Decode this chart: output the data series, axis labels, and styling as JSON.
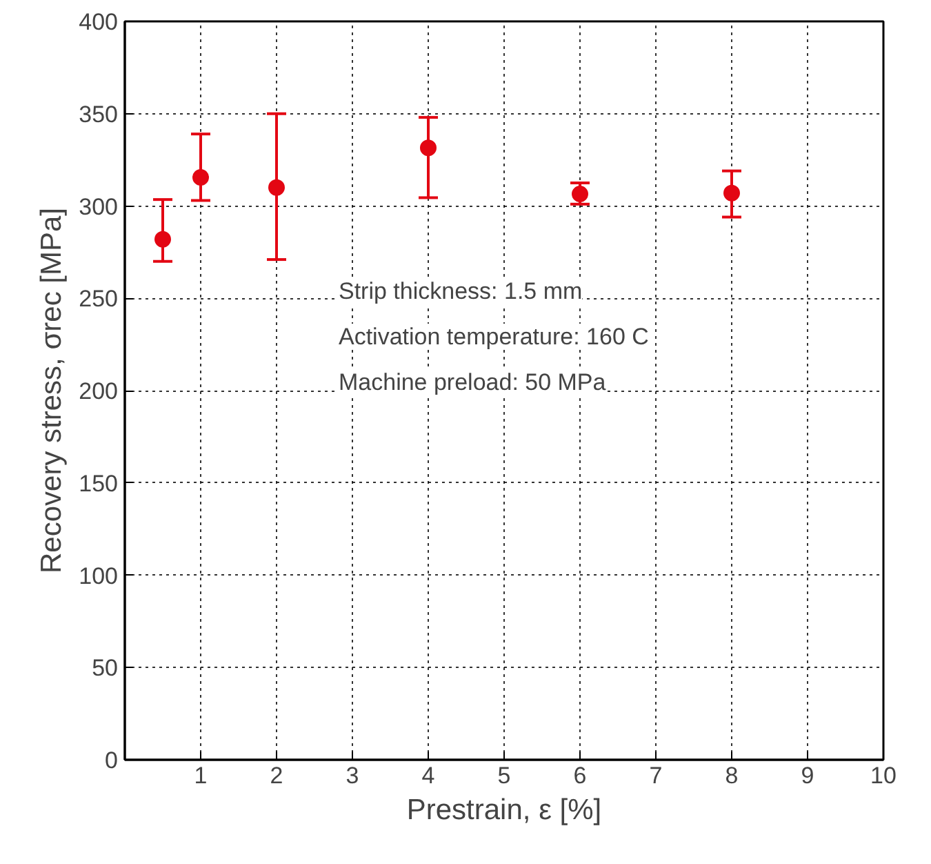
{
  "chart_data": {
    "type": "scatter",
    "xlabel": "Prestrain, ε [%]",
    "ylabel": "Recovery stress, σrec [MPa]",
    "x": [
      0.5,
      1,
      2,
      4,
      6,
      8
    ],
    "series": [
      {
        "color": "#e30613",
        "values": [
          282,
          315.5,
          310,
          331.5,
          306.5,
          307
        ],
        "errors": [
          [
            270,
            303.5
          ],
          [
            303,
            339
          ],
          [
            271,
            350
          ],
          [
            304.5,
            348
          ],
          [
            301,
            312.5
          ],
          [
            294,
            319
          ]
        ]
      }
    ],
    "xlim": [
      0,
      10
    ],
    "xticks": [
      1,
      2,
      3,
      4,
      5,
      6,
      7,
      8,
      9,
      10
    ],
    "ylim": [
      0,
      400
    ],
    "yticks": [
      0,
      50,
      100,
      150,
      200,
      250,
      300,
      350,
      400
    ],
    "grid": true,
    "marker": "circle",
    "annotations": [
      "Strip thickness: 1.5 mm",
      "Activation temperature: 160 C",
      "Machine preload: 50 MPa"
    ]
  }
}
